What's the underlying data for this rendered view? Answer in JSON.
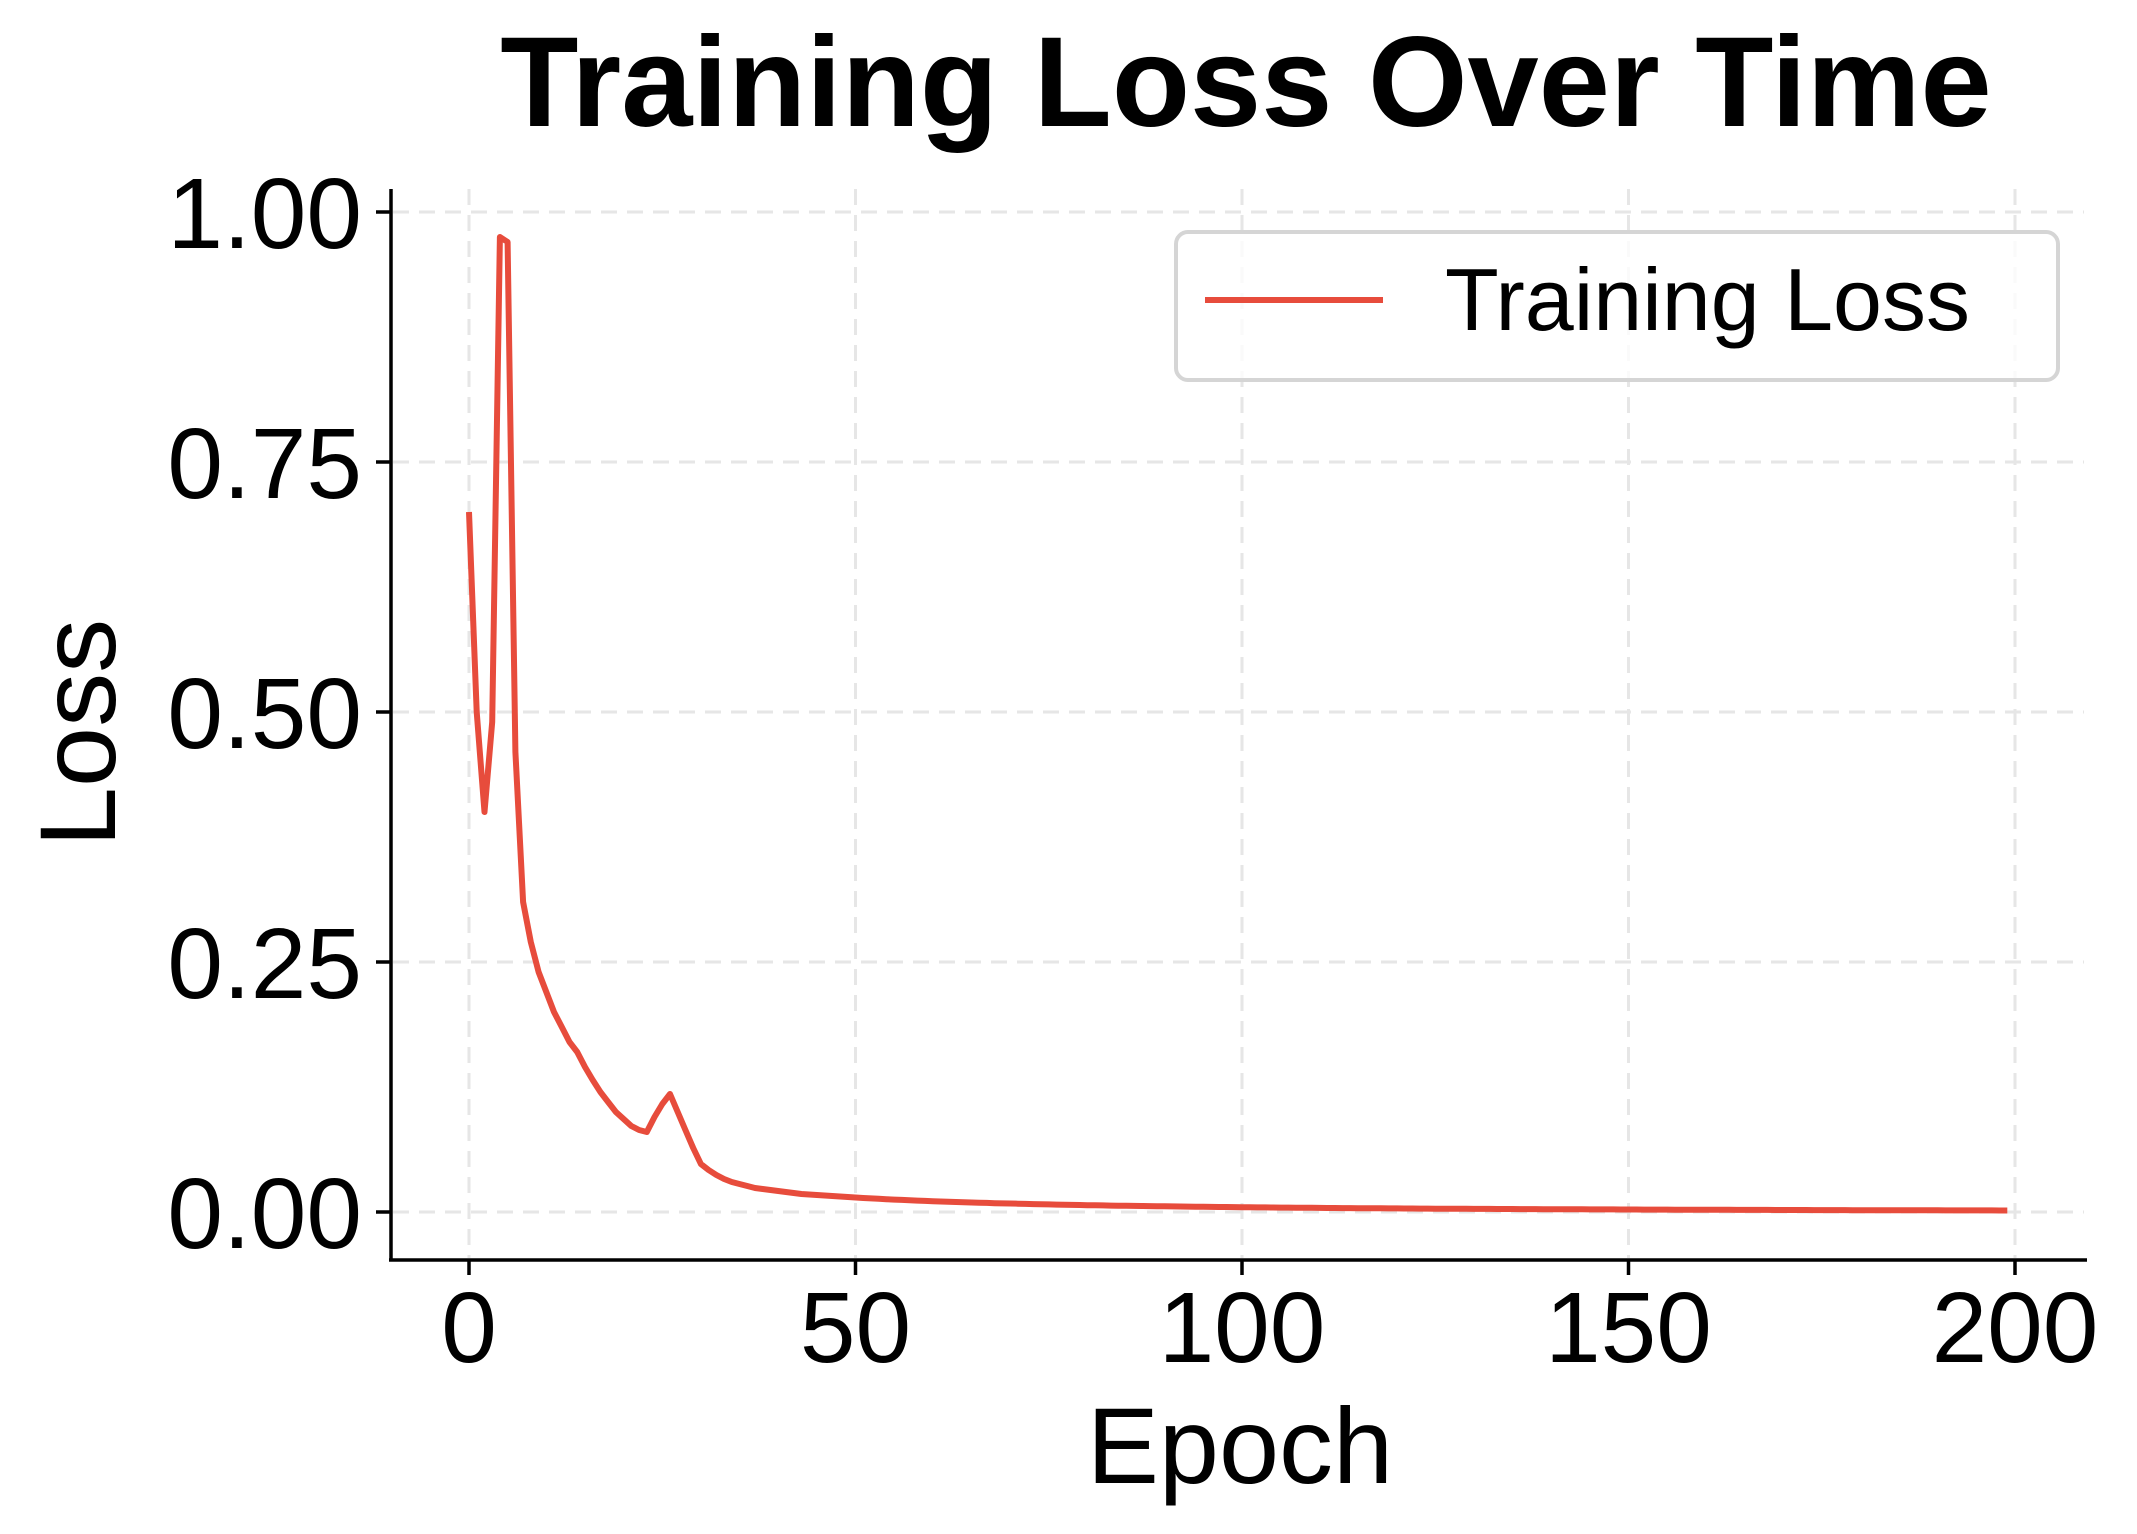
{
  "chart_data": {
    "type": "line",
    "title": "Training Loss Over Time",
    "xlabel": "Epoch",
    "ylabel": "Loss",
    "xlim": [
      -10,
      210
    ],
    "ylim": [
      -0.048,
      1.023
    ],
    "xticks": [
      0,
      50,
      100,
      150,
      200
    ],
    "xtick_labels": [
      "0",
      "50",
      "100",
      "150",
      "200"
    ],
    "yticks": [
      0.0,
      0.25,
      0.5,
      0.75,
      1.0
    ],
    "ytick_labels": [
      "0.00",
      "0.25",
      "0.50",
      "0.75",
      "1.00"
    ],
    "grid": true,
    "grid_style": "dashed",
    "legend_position": "upper right",
    "series": [
      {
        "name": "Training Loss",
        "color": "#E74C3C",
        "x_start": 0,
        "x_step": 1,
        "values": [
          0.7,
          0.5,
          0.4,
          0.49,
          0.975,
          0.97,
          0.46,
          0.31,
          0.27,
          0.24,
          0.22,
          0.2,
          0.185,
          0.17,
          0.16,
          0.145,
          0.132,
          0.12,
          0.11,
          0.1,
          0.093,
          0.086,
          0.082,
          0.08,
          0.095,
          0.108,
          0.118,
          0.1,
          0.082,
          0.064,
          0.048,
          0.042,
          0.037,
          0.033,
          0.03,
          0.028,
          0.026,
          0.024,
          0.023,
          0.022,
          0.021,
          0.02,
          0.019,
          0.018,
          0.0175,
          0.017,
          0.0165,
          0.016,
          0.0155,
          0.015,
          0.0145,
          0.014,
          0.0136,
          0.0132,
          0.0128,
          0.0124,
          0.0121,
          0.0118,
          0.0114,
          0.0111,
          0.0108,
          0.0105,
          0.0103,
          0.01,
          0.0098,
          0.0095,
          0.0093,
          0.0091,
          0.0088,
          0.0086,
          0.0085,
          0.0083,
          0.0081,
          0.0079,
          0.0077,
          0.0076,
          0.0074,
          0.0073,
          0.0071,
          0.007,
          0.0068,
          0.0067,
          0.0066,
          0.0064,
          0.0063,
          0.0062,
          0.0061,
          0.006,
          0.0059,
          0.0058,
          0.0057,
          0.0056,
          0.0055,
          0.0054,
          0.0053,
          0.0052,
          0.0051,
          0.005,
          0.005,
          0.0049,
          0.0048,
          0.0047,
          0.0046,
          0.0046,
          0.0045,
          0.0044,
          0.0044,
          0.0043,
          0.0042,
          0.0042,
          0.0041,
          0.004,
          0.004,
          0.0039,
          0.0039,
          0.0038,
          0.0038,
          0.0037,
          0.0037,
          0.0036,
          0.0036,
          0.0035,
          0.0035,
          0.0034,
          0.0034,
          0.0033,
          0.0033,
          0.0033,
          0.0032,
          0.0032,
          0.0031,
          0.0031,
          0.0031,
          0.003,
          0.003,
          0.003,
          0.0029,
          0.0029,
          0.0029,
          0.0028,
          0.0028,
          0.0028,
          0.0027,
          0.0027,
          0.0027,
          0.0026,
          0.0026,
          0.0026,
          0.0026,
          0.0025,
          0.0025,
          0.0025,
          0.0024,
          0.0024,
          0.0024,
          0.0024,
          0.0023,
          0.0023,
          0.0023,
          0.0023,
          0.0022,
          0.0022,
          0.0022,
          0.0022,
          0.0021,
          0.0021,
          0.0021,
          0.0021,
          0.0021,
          0.002,
          0.002,
          0.002,
          0.002,
          0.002,
          0.0019,
          0.0019,
          0.0019,
          0.0019,
          0.0019,
          0.0018,
          0.0018,
          0.0018,
          0.0018,
          0.0018,
          0.0018,
          0.0017,
          0.0017,
          0.0017,
          0.0017,
          0.0017,
          0.0017,
          0.0016,
          0.0016,
          0.0016,
          0.0016,
          0.0016,
          0.0016,
          0.0016,
          0.0015,
          0.0015
        ]
      }
    ]
  },
  "legend": {
    "items": [
      {
        "label": "Training Loss",
        "color": "#E74C3C"
      }
    ]
  },
  "colors": {
    "series": "#E74C3C",
    "grid": "#E6E6E6",
    "axis": "#000000",
    "legend_border": "#D5D5D5"
  }
}
